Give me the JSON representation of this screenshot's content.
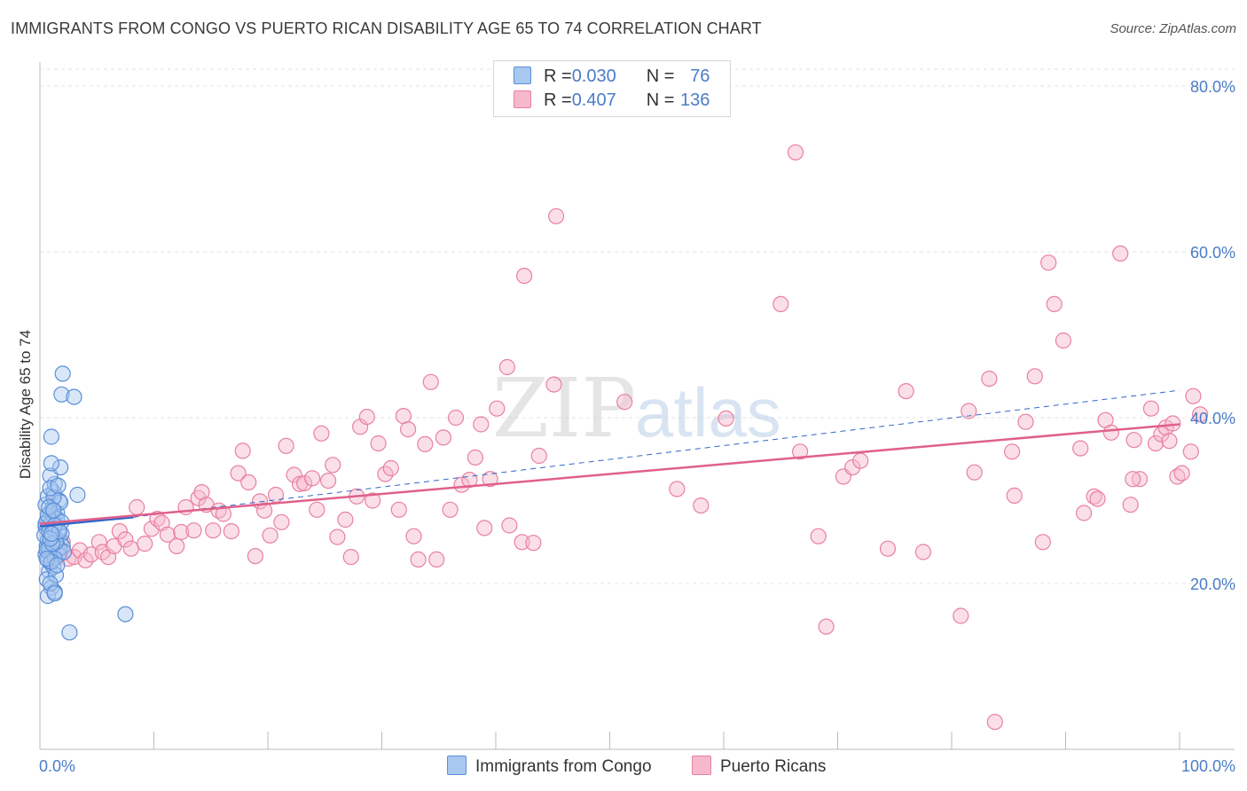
{
  "title": "IMMIGRANTS FROM CONGO VS PUERTO RICAN DISABILITY AGE 65 TO 74 CORRELATION CHART",
  "source": "Source: ZipAtlas.com",
  "watermark": {
    "zip": "ZIP",
    "atlas": "atlas"
  },
  "colors": {
    "congo_fill": "#a9c8f0",
    "congo_stroke": "#5b8fd8",
    "congo_line": "#2f66c8",
    "pr_fill": "#f6b9cc",
    "pr_stroke": "#e8809f",
    "pr_line": "#e0608a",
    "axis_text": "#4a7cc8",
    "grid": "#e3e3e3"
  },
  "legend": {
    "congo": {
      "r_label": "R = ",
      "r_value": "0.030",
      "n_label": "N = ",
      "n_value": "76"
    },
    "pr": {
      "r_label": "R = ",
      "r_value": "0.407",
      "n_label": "N = ",
      "n_value": "136"
    }
  },
  "chart_data": {
    "type": "scatter",
    "title": "IMMIGRANTS FROM CONGO VS PUERTO RICAN DISABILITY AGE 65 TO 74 CORRELATION CHART",
    "xlabel": "",
    "ylabel": "Disability Age 65 to 74",
    "xlim": [
      0,
      100
    ],
    "ylim": [
      0,
      84
    ],
    "x_tick_labels": [
      "0.0%",
      "100.0%"
    ],
    "y_ticks": [
      20,
      40,
      60,
      80
    ],
    "y_tick_labels": [
      "20.0%",
      "40.0%",
      "60.0%",
      "80.0%"
    ],
    "legend_position": "top-center",
    "series": [
      {
        "name": "Immigrants from Congo",
        "r": 0.03,
        "n": 76,
        "trend": {
          "x": [
            0,
            8.2
          ],
          "y": [
            26.9,
            28.0
          ]
        },
        "points": [
          [
            0.5,
            23.5
          ],
          [
            0.6,
            24.5
          ],
          [
            0.7,
            25.2
          ],
          [
            0.8,
            23.8
          ],
          [
            0.9,
            22.5
          ],
          [
            1.0,
            26.0
          ],
          [
            0.6,
            27.5
          ],
          [
            1.1,
            24.0
          ],
          [
            0.9,
            28.5
          ],
          [
            1.3,
            23.2
          ],
          [
            0.5,
            29.5
          ],
          [
            1.4,
            25.5
          ],
          [
            0.7,
            30.5
          ],
          [
            1.2,
            31.0
          ],
          [
            1.5,
            24.8
          ],
          [
            0.8,
            21.5
          ],
          [
            0.6,
            20.5
          ],
          [
            1.0,
            19.5
          ],
          [
            0.7,
            18.5
          ],
          [
            1.3,
            19.0
          ],
          [
            0.9,
            27.0
          ],
          [
            1.6,
            26.5
          ],
          [
            1.2,
            28.0
          ],
          [
            0.5,
            26.8
          ],
          [
            1.8,
            25.0
          ],
          [
            1.4,
            27.2
          ],
          [
            1.1,
            29.0
          ],
          [
            1.7,
            30.0
          ],
          [
            1.3,
            32.0
          ],
          [
            0.9,
            33.0
          ],
          [
            1.8,
            34.0
          ],
          [
            1.0,
            34.5
          ],
          [
            1.5,
            28.5
          ],
          [
            1.9,
            26.0
          ],
          [
            2.0,
            24.5
          ],
          [
            1.6,
            23.5
          ],
          [
            0.8,
            24.2
          ],
          [
            0.4,
            25.8
          ],
          [
            1.2,
            22.0
          ],
          [
            0.7,
            22.8
          ],
          [
            1.4,
            21.0
          ],
          [
            1.0,
            37.7
          ],
          [
            1.9,
            42.8
          ],
          [
            2.0,
            45.3
          ],
          [
            3.0,
            42.5
          ],
          [
            3.3,
            30.7
          ],
          [
            7.5,
            16.3
          ],
          [
            2.6,
            14.1
          ],
          [
            0.9,
            20.0
          ],
          [
            1.3,
            18.8
          ],
          [
            0.6,
            24.0
          ],
          [
            1.1,
            25.6
          ],
          [
            1.5,
            27.8
          ],
          [
            1.8,
            29.8
          ],
          [
            1.2,
            30.4
          ],
          [
            0.5,
            27.2
          ],
          [
            0.8,
            26.2
          ],
          [
            1.7,
            24.2
          ],
          [
            2.1,
            23.8
          ],
          [
            1.3,
            23.0
          ],
          [
            0.9,
            31.5
          ],
          [
            1.6,
            31.8
          ],
          [
            1.0,
            22.6
          ],
          [
            1.4,
            25.0
          ],
          [
            0.7,
            28.2
          ],
          [
            1.2,
            26.6
          ],
          [
            1.9,
            27.4
          ],
          [
            0.6,
            23.0
          ],
          [
            1.5,
            22.2
          ],
          [
            1.1,
            24.8
          ],
          [
            0.8,
            29.2
          ],
          [
            1.3,
            27.0
          ],
          [
            1.7,
            26.3
          ],
          [
            0.9,
            25.4
          ],
          [
            1.2,
            28.8
          ],
          [
            1.0,
            26.0
          ]
        ]
      },
      {
        "name": "Puerto Ricans",
        "r": 0.407,
        "n": 136,
        "trend": {
          "x": [
            0,
            100
          ],
          "y": [
            27.2,
            39.2
          ]
        },
        "points": [
          [
            1.2,
            24.5
          ],
          [
            1.8,
            23.5
          ],
          [
            2.0,
            25.0
          ],
          [
            2.5,
            23.0
          ],
          [
            3.0,
            23.2
          ],
          [
            3.5,
            24.0
          ],
          [
            4.0,
            22.8
          ],
          [
            4.5,
            23.5
          ],
          [
            5.2,
            25.0
          ],
          [
            5.5,
            23.8
          ],
          [
            6.0,
            23.2
          ],
          [
            6.5,
            24.5
          ],
          [
            7.0,
            26.3
          ],
          [
            7.5,
            25.3
          ],
          [
            8.0,
            24.2
          ],
          [
            8.5,
            29.2
          ],
          [
            9.2,
            24.8
          ],
          [
            9.8,
            26.6
          ],
          [
            10.3,
            27.8
          ],
          [
            10.7,
            27.3
          ],
          [
            11.2,
            25.9
          ],
          [
            12.0,
            24.5
          ],
          [
            12.4,
            26.2
          ],
          [
            12.8,
            29.2
          ],
          [
            13.5,
            26.4
          ],
          [
            13.9,
            30.3
          ],
          [
            14.2,
            31.0
          ],
          [
            14.6,
            29.5
          ],
          [
            15.2,
            26.4
          ],
          [
            15.7,
            28.8
          ],
          [
            16.1,
            28.4
          ],
          [
            16.8,
            26.3
          ],
          [
            17.4,
            33.3
          ],
          [
            17.8,
            36.0
          ],
          [
            18.3,
            32.2
          ],
          [
            18.9,
            23.3
          ],
          [
            19.3,
            29.9
          ],
          [
            19.7,
            28.8
          ],
          [
            20.2,
            25.8
          ],
          [
            20.7,
            30.7
          ],
          [
            21.2,
            27.4
          ],
          [
            21.6,
            36.6
          ],
          [
            22.3,
            33.1
          ],
          [
            22.8,
            32.0
          ],
          [
            23.2,
            32.1
          ],
          [
            23.9,
            32.7
          ],
          [
            24.3,
            28.9
          ],
          [
            24.7,
            38.1
          ],
          [
            25.3,
            32.4
          ],
          [
            25.7,
            34.3
          ],
          [
            26.1,
            25.6
          ],
          [
            26.8,
            27.7
          ],
          [
            27.3,
            23.2
          ],
          [
            27.8,
            30.5
          ],
          [
            28.1,
            38.9
          ],
          [
            28.7,
            40.1
          ],
          [
            29.2,
            30.0
          ],
          [
            29.7,
            36.9
          ],
          [
            30.3,
            33.2
          ],
          [
            30.8,
            33.9
          ],
          [
            31.5,
            28.9
          ],
          [
            31.9,
            40.2
          ],
          [
            32.3,
            38.6
          ],
          [
            32.8,
            25.7
          ],
          [
            33.2,
            22.9
          ],
          [
            33.8,
            36.8
          ],
          [
            34.3,
            44.3
          ],
          [
            34.8,
            22.9
          ],
          [
            35.4,
            37.6
          ],
          [
            36.0,
            28.9
          ],
          [
            36.5,
            40.0
          ],
          [
            37.0,
            31.9
          ],
          [
            37.7,
            32.5
          ],
          [
            38.2,
            35.2
          ],
          [
            38.7,
            39.2
          ],
          [
            39.0,
            26.7
          ],
          [
            39.5,
            32.6
          ],
          [
            40.1,
            41.1
          ],
          [
            41.0,
            46.1
          ],
          [
            41.2,
            27.0
          ],
          [
            42.3,
            25.0
          ],
          [
            42.5,
            57.1
          ],
          [
            43.3,
            24.9
          ],
          [
            43.8,
            35.4
          ],
          [
            45.1,
            44.0
          ],
          [
            45.3,
            64.3
          ],
          [
            51.3,
            41.9
          ],
          [
            55.9,
            31.4
          ],
          [
            58.0,
            29.4
          ],
          [
            60.2,
            39.9
          ],
          [
            65.0,
            53.7
          ],
          [
            66.3,
            72.0
          ],
          [
            66.7,
            35.9
          ],
          [
            68.3,
            25.7
          ],
          [
            69.0,
            14.8
          ],
          [
            70.5,
            32.9
          ],
          [
            71.3,
            34.0
          ],
          [
            72.0,
            34.8
          ],
          [
            74.4,
            24.2
          ],
          [
            76.0,
            43.2
          ],
          [
            77.5,
            23.8
          ],
          [
            80.8,
            16.1
          ],
          [
            82.0,
            33.4
          ],
          [
            83.3,
            44.7
          ],
          [
            83.8,
            3.3
          ],
          [
            85.3,
            35.9
          ],
          [
            85.5,
            30.6
          ],
          [
            87.3,
            45.0
          ],
          [
            88.0,
            25.0
          ],
          [
            88.5,
            58.7
          ],
          [
            89.0,
            53.7
          ],
          [
            89.8,
            49.3
          ],
          [
            91.3,
            36.3
          ],
          [
            91.6,
            28.5
          ],
          [
            92.5,
            30.5
          ],
          [
            92.8,
            30.2
          ],
          [
            93.5,
            39.7
          ],
          [
            94.0,
            38.2
          ],
          [
            94.8,
            59.8
          ],
          [
            95.7,
            29.5
          ],
          [
            96.0,
            37.3
          ],
          [
            96.5,
            32.6
          ],
          [
            97.5,
            41.1
          ],
          [
            97.9,
            36.9
          ],
          [
            98.4,
            38.0
          ],
          [
            98.8,
            38.8
          ],
          [
            99.1,
            37.2
          ],
          [
            99.4,
            39.3
          ],
          [
            99.8,
            32.9
          ],
          [
            100.2,
            33.3
          ],
          [
            101.0,
            35.9
          ],
          [
            101.2,
            42.6
          ],
          [
            101.8,
            40.4
          ],
          [
            95.9,
            32.6
          ],
          [
            86.5,
            39.5
          ],
          [
            81.5,
            40.8
          ]
        ]
      }
    ]
  },
  "bottom_legend": {
    "congo_label": "Immigrants from Congo",
    "pr_label": "Puerto Ricans"
  }
}
